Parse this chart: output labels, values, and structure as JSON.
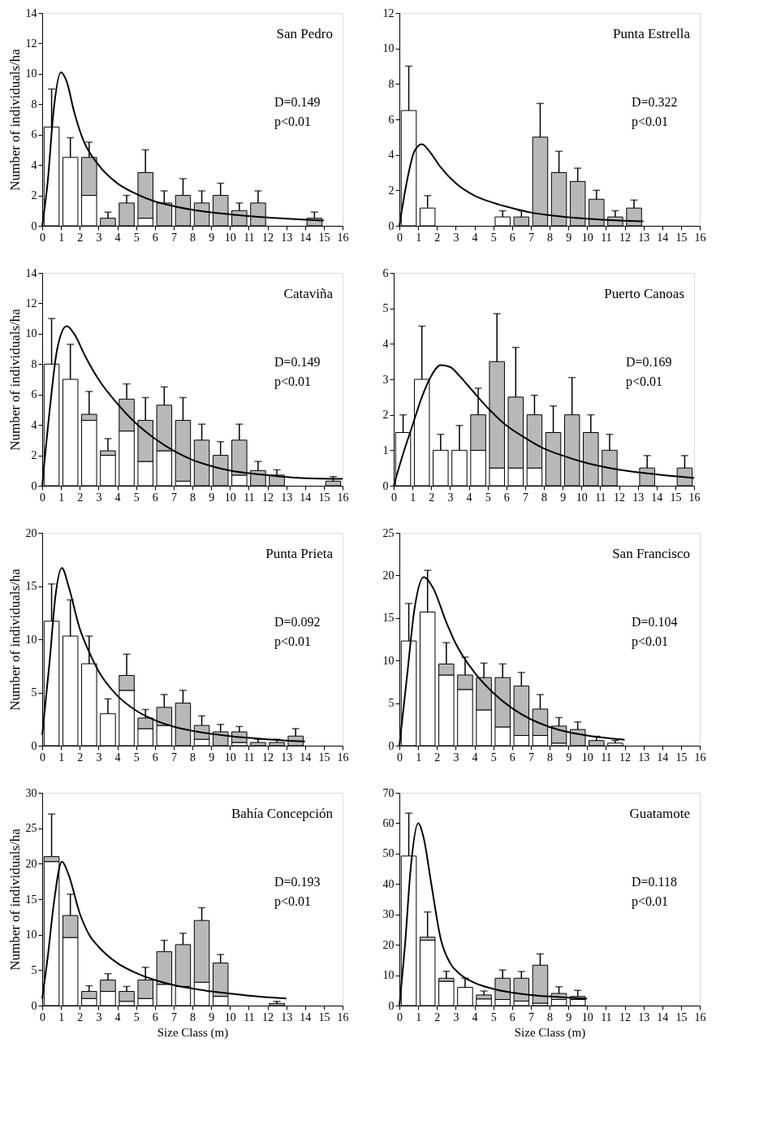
{
  "chart_data": [
    {
      "type": "bar",
      "stacked": true,
      "title": "San Pedro",
      "ylabel": "Number of individuals/ha",
      "annotations": [
        "D=0.149",
        "p<0.01"
      ],
      "x": [
        0.5,
        1.5,
        2.5,
        3.5,
        4.5,
        5.5,
        6.5,
        7.5,
        8.5,
        9.5,
        10.5,
        11.5,
        14.5
      ],
      "series": [
        {
          "color": "#ffffff",
          "values": [
            6.5,
            4.5,
            2,
            0,
            0,
            0.5,
            0,
            0,
            0,
            0,
            0,
            0,
            0
          ]
        },
        {
          "color": "#b8b8b8",
          "values": [
            0,
            0,
            2.5,
            0.5,
            1.5,
            3.0,
            1.5,
            2,
            1.5,
            2,
            1,
            1.5,
            0.5
          ],
          "errors": [
            [
              6.5,
              9
            ],
            [
              4.5,
              5.8
            ],
            [
              4.5,
              5.5
            ],
            [
              0.5,
              0.9
            ],
            [
              1.5,
              2.0
            ],
            [
              3.5,
              5.0
            ],
            [
              1.5,
              2.3
            ],
            [
              2,
              3.1
            ],
            [
              1.5,
              2.3
            ],
            [
              2,
              2.8
            ],
            [
              1,
              1.5
            ],
            [
              1.5,
              2.3
            ],
            [
              0.5,
              0.9
            ]
          ]
        },
        {
          "type": "line",
          "color": "#000000",
          "x": [
            0,
            0.3,
            0.6,
            1,
            1.3,
            1.7,
            2.2,
            3,
            4,
            5,
            6,
            7,
            8,
            10,
            12,
            15
          ],
          "values": [
            0,
            3,
            7.5,
            10.1,
            9.5,
            7.5,
            5.6,
            4,
            2.8,
            2.1,
            1.6,
            1.3,
            1.05,
            0.75,
            0.55,
            0.35
          ]
        }
      ],
      "xlim": [
        0,
        16
      ],
      "xticks": [
        0,
        1,
        2,
        3,
        4,
        5,
        6,
        7,
        8,
        9,
        10,
        11,
        12,
        13,
        14,
        15,
        16
      ],
      "ylim": [
        0,
        14
      ],
      "yticks": [
        0,
        2,
        4,
        6,
        8,
        10,
        12,
        14
      ]
    },
    {
      "type": "bar",
      "stacked": true,
      "title": "Punta Estrella",
      "annotations": [
        "D=0.322",
        "p<0.01"
      ],
      "x": [
        0.5,
        1.5,
        5.5,
        6.5,
        7.5,
        8.5,
        9.5,
        10.5,
        11.5,
        12.5
      ],
      "series": [
        {
          "color": "#ffffff",
          "values": [
            6.5,
            1,
            0.5,
            0,
            0,
            0,
            0,
            0,
            0,
            0
          ]
        },
        {
          "color": "#b8b8b8",
          "values": [
            0,
            0,
            0,
            0.5,
            5,
            3,
            2.5,
            1.5,
            0.5,
            1
          ],
          "errors": [
            [
              6.5,
              9
            ],
            [
              1,
              1.7
            ],
            [
              0.5,
              0.85
            ],
            [
              0.5,
              0.85
            ],
            [
              5,
              6.9
            ],
            [
              3,
              4.2
            ],
            [
              2.5,
              3.25
            ],
            [
              1.5,
              2.0
            ],
            [
              0.5,
              0.85
            ],
            [
              1,
              1.45
            ]
          ]
        },
        {
          "type": "line",
          "color": "#000000",
          "x": [
            0,
            0.4,
            0.8,
            1.2,
            1.6,
            2.2,
            3,
            4,
            5,
            6,
            7,
            8,
            10,
            13
          ],
          "values": [
            0,
            2.5,
            4.2,
            4.6,
            4.2,
            3.3,
            2.4,
            1.7,
            1.3,
            1.0,
            0.75,
            0.6,
            0.4,
            0.25
          ]
        }
      ],
      "xlim": [
        0,
        16
      ],
      "xticks": [
        0,
        1,
        2,
        3,
        4,
        5,
        6,
        7,
        8,
        9,
        10,
        11,
        12,
        13,
        14,
        15,
        16
      ],
      "ylim": [
        0,
        12
      ],
      "yticks": [
        0,
        2,
        4,
        6,
        8,
        10,
        12
      ]
    },
    {
      "type": "bar",
      "stacked": true,
      "title": "Cataviña",
      "ylabel": "Number of individuals/ha",
      "annotations": [
        "D=0.149",
        "p<0.01"
      ],
      "x": [
        0.5,
        1.5,
        2.5,
        3.5,
        4.5,
        5.5,
        6.5,
        7.5,
        8.5,
        9.5,
        10.5,
        11.5,
        12.5,
        15.5
      ],
      "series": [
        {
          "color": "#ffffff",
          "values": [
            8,
            7,
            4.3,
            2.0,
            3.6,
            1.6,
            2.3,
            0.3,
            0,
            0,
            0.7,
            0,
            0,
            0
          ]
        },
        {
          "color": "#b8b8b8",
          "values": [
            0,
            0,
            0.4,
            0.3,
            2.1,
            2.7,
            3.0,
            4.0,
            3,
            2,
            2.3,
            1,
            0.7,
            0.3
          ],
          "errors": [
            [
              8,
              11
            ],
            [
              7,
              9.3
            ],
            [
              4.7,
              6.2
            ],
            [
              2.3,
              3.1
            ],
            [
              5.7,
              6.7
            ],
            [
              4.3,
              5.8
            ],
            [
              5.3,
              6.5
            ],
            [
              4.3,
              5.8
            ],
            [
              3,
              4.05
            ],
            [
              2,
              2.9
            ],
            [
              3,
              4.05
            ],
            [
              1,
              1.6
            ],
            [
              0.7,
              1.05
            ],
            [
              0.3,
              0.6
            ]
          ]
        },
        {
          "type": "line",
          "color": "#000000",
          "x": [
            0,
            0.4,
            0.8,
            1.3,
            1.7,
            2.3,
            3,
            4,
            5,
            6,
            7,
            8,
            9,
            10,
            12,
            14,
            16
          ],
          "values": [
            0,
            5,
            9,
            10.5,
            10,
            8.5,
            7,
            5.4,
            4.1,
            3.1,
            2.3,
            1.7,
            1.3,
            1.0,
            0.7,
            0.5,
            0.45
          ]
        }
      ],
      "xlim": [
        0,
        16
      ],
      "xticks": [
        0,
        1,
        2,
        3,
        4,
        5,
        6,
        7,
        8,
        9,
        10,
        11,
        12,
        13,
        14,
        15,
        16
      ],
      "ylim": [
        0,
        14
      ],
      "yticks": [
        0,
        2,
        4,
        6,
        8,
        10,
        12,
        14
      ]
    },
    {
      "type": "bar",
      "stacked": true,
      "title": "Puerto Canoas",
      "annotations": [
        "D=0.169",
        "p<0.01"
      ],
      "x": [
        0.5,
        1.5,
        2.5,
        3.5,
        4.5,
        5.5,
        6.5,
        7.5,
        8.5,
        9.5,
        10.5,
        11.5,
        13.5,
        15.5
      ],
      "series": [
        {
          "color": "#ffffff",
          "values": [
            1.5,
            3,
            1,
            1,
            1,
            0.5,
            0.5,
            0.5,
            0,
            0,
            0,
            0,
            0,
            0
          ]
        },
        {
          "color": "#b8b8b8",
          "values": [
            0,
            0,
            0,
            0,
            1,
            3,
            2,
            1.5,
            1.5,
            2,
            1.5,
            1,
            0.5,
            0.5
          ],
          "errors": [
            [
              1.5,
              2.0
            ],
            [
              3,
              4.5
            ],
            [
              1,
              1.45
            ],
            [
              1,
              1.7
            ],
            [
              2,
              2.75
            ],
            [
              3.5,
              4.85
            ],
            [
              2.5,
              3.9
            ],
            [
              2,
              2.55
            ],
            [
              1.5,
              2.25
            ],
            [
              2,
              3.05
            ],
            [
              1.5,
              2.0
            ],
            [
              1,
              1.45
            ],
            [
              0.5,
              0.85
            ],
            [
              0.5,
              0.85
            ]
          ]
        },
        {
          "type": "line",
          "color": "#000000",
          "x": [
            0,
            0.5,
            1,
            1.5,
            2,
            2.5,
            3,
            3.5,
            4,
            5,
            6,
            7,
            8,
            9,
            10,
            12,
            14,
            16
          ],
          "values": [
            0,
            0.9,
            1.7,
            2.5,
            3.1,
            3.4,
            3.35,
            3.1,
            2.8,
            2.2,
            1.7,
            1.35,
            1.05,
            0.85,
            0.68,
            0.45,
            0.32,
            0.22
          ]
        }
      ],
      "xlim": [
        0,
        16
      ],
      "xticks": [
        0,
        1,
        2,
        3,
        4,
        5,
        6,
        7,
        8,
        9,
        10,
        11,
        12,
        13,
        14,
        15,
        16
      ],
      "ylim": [
        0,
        6
      ],
      "yticks": [
        0,
        1,
        2,
        3,
        4,
        5,
        6
      ]
    },
    {
      "type": "bar",
      "stacked": true,
      "title": "Punta Prieta",
      "ylabel": "Number of individuals/ha",
      "annotations": [
        "D=0.092",
        "p<0.01"
      ],
      "x": [
        0.5,
        1.5,
        2.5,
        3.5,
        4.5,
        5.5,
        6.5,
        7.5,
        8.5,
        9.5,
        10.5,
        11.5,
        12.5,
        13.5
      ],
      "series": [
        {
          "color": "#ffffff",
          "values": [
            11.7,
            10.3,
            7.7,
            3,
            5.2,
            1.6,
            1.9,
            0,
            0.6,
            0,
            0.3,
            0,
            0,
            0
          ]
        },
        {
          "color": "#b8b8b8",
          "values": [
            0,
            0,
            0,
            0,
            1.4,
            1.0,
            1.7,
            4.0,
            1.3,
            1.3,
            1.0,
            0.3,
            0.3,
            0.9
          ],
          "errors": [
            [
              11.7,
              15.2
            ],
            [
              10.3,
              13.7
            ],
            [
              7.7,
              10.3
            ],
            [
              3,
              4.4
            ],
            [
              6.6,
              8.6
            ],
            [
              2.6,
              3.4
            ],
            [
              3.6,
              4.8
            ],
            [
              4.0,
              5.2
            ],
            [
              1.9,
              2.8
            ],
            [
              1.3,
              2.0
            ],
            [
              1.3,
              1.8
            ],
            [
              0.3,
              0.6
            ],
            [
              0.3,
              0.6
            ],
            [
              0.9,
              1.6
            ]
          ]
        },
        {
          "type": "line",
          "color": "#000000",
          "x": [
            0,
            0.4,
            0.7,
            1.05,
            1.4,
            2,
            2.5,
            3,
            4,
            5,
            6,
            7,
            8,
            10,
            12,
            14
          ],
          "values": [
            1,
            8,
            14,
            16.7,
            15,
            11,
            8.8,
            7,
            4.7,
            3.3,
            2.4,
            1.8,
            1.4,
            0.9,
            0.6,
            0.4
          ]
        }
      ],
      "xlim": [
        0,
        16
      ],
      "xticks": [
        0,
        1,
        2,
        3,
        4,
        5,
        6,
        7,
        8,
        9,
        10,
        11,
        12,
        13,
        14,
        15,
        16
      ],
      "ylim": [
        0,
        20
      ],
      "yticks": [
        0,
        5,
        10,
        15,
        20
      ]
    },
    {
      "type": "bar",
      "stacked": true,
      "title": "San Francisco",
      "annotations": [
        "D=0.104",
        "p<0.01"
      ],
      "x": [
        0.5,
        1.5,
        2.5,
        3.5,
        4.5,
        5.5,
        6.5,
        7.5,
        8.5,
        9.5,
        10.5,
        11.5
      ],
      "series": [
        {
          "color": "#ffffff",
          "values": [
            12.3,
            15.7,
            8.3,
            6.6,
            4.2,
            2.2,
            1.2,
            1.2,
            0.3,
            0,
            0,
            0.3
          ]
        },
        {
          "color": "#b8b8b8",
          "values": [
            0,
            0,
            1.3,
            1.7,
            3.8,
            5.8,
            5.8,
            3.1,
            2.0,
            1.9,
            0.6,
            0
          ],
          "errors": [
            [
              12.3,
              16.7
            ],
            [
              15.7,
              20.6
            ],
            [
              9.6,
              12.1
            ],
            [
              8.3,
              10.4
            ],
            [
              8,
              9.7
            ],
            [
              8,
              9.6
            ],
            [
              7,
              8.6
            ],
            [
              4.3,
              6.0
            ],
            [
              2.3,
              3.3
            ],
            [
              1.9,
              2.8
            ],
            [
              0.6,
              1.1
            ],
            [
              0.3,
              0.6
            ]
          ]
        },
        {
          "type": "line",
          "color": "#000000",
          "x": [
            0,
            0.4,
            0.8,
            1.3,
            1.8,
            2.5,
            3,
            4,
            5,
            6,
            7,
            8,
            9,
            10,
            12
          ],
          "values": [
            0,
            8,
            16,
            19.8,
            18.5,
            14.5,
            12,
            8.6,
            6.2,
            4.4,
            3.1,
            2.2,
            1.6,
            1.2,
            0.7
          ]
        }
      ],
      "xlim": [
        0,
        16
      ],
      "xticks": [
        0,
        1,
        2,
        3,
        4,
        5,
        6,
        7,
        8,
        9,
        10,
        11,
        12,
        13,
        14,
        15,
        16
      ],
      "ylim": [
        0,
        25
      ],
      "yticks": [
        0,
        5,
        10,
        15,
        20,
        25
      ]
    },
    {
      "type": "bar",
      "stacked": true,
      "title": "Bahía Concepción",
      "xlabel": "Size Class (m)",
      "ylabel": "Number of individuals/ha",
      "annotations": [
        "D=0.193",
        "p<0.01"
      ],
      "x": [
        0.5,
        1.5,
        2.5,
        3.5,
        4.5,
        5.5,
        6.5,
        7.5,
        8.5,
        9.5,
        12.5
      ],
      "series": [
        {
          "color": "#ffffff",
          "values": [
            20.3,
            9.6,
            1,
            2,
            0.6,
            1,
            3,
            2.7,
            3.3,
            1.3,
            0
          ]
        },
        {
          "color": "#b8b8b8",
          "values": [
            0.7,
            3.1,
            1,
            1.6,
            1.4,
            2.6,
            4.6,
            5.9,
            8.7,
            4.7,
            0.3
          ],
          "errors": [
            [
              21,
              27
            ],
            [
              12.7,
              15.7
            ],
            [
              2,
              2.8
            ],
            [
              3.6,
              4.5
            ],
            [
              2,
              2.7
            ],
            [
              3.6,
              5.4
            ],
            [
              7.6,
              9.2
            ],
            [
              8.6,
              10.2
            ],
            [
              12,
              13.8
            ],
            [
              6,
              7.2
            ],
            [
              0.3,
              0.6
            ]
          ]
        },
        {
          "type": "line",
          "color": "#000000",
          "x": [
            0,
            0.3,
            0.6,
            1.05,
            1.4,
            2,
            2.5,
            3,
            4,
            5,
            6,
            7,
            8,
            9,
            10,
            11,
            13
          ],
          "values": [
            1,
            7,
            14,
            20.3,
            18.5,
            13,
            10,
            8.3,
            6,
            4.6,
            3.6,
            2.9,
            2.4,
            2.0,
            1.7,
            1.4,
            1.0
          ]
        }
      ],
      "xlim": [
        0,
        16
      ],
      "xticks": [
        0,
        1,
        2,
        3,
        4,
        5,
        6,
        7,
        8,
        9,
        10,
        11,
        12,
        13,
        14,
        15,
        16
      ],
      "ylim": [
        0,
        30
      ],
      "yticks": [
        0,
        5,
        10,
        15,
        20,
        25,
        30
      ]
    },
    {
      "type": "bar",
      "stacked": true,
      "title": "Guatamote",
      "xlabel": "Size Class (m)",
      "annotations": [
        "D=0.118",
        "p<0.01"
      ],
      "x": [
        0.5,
        1.5,
        2.5,
        3.5,
        4.5,
        5.5,
        6.5,
        7.5,
        8.5,
        9.5
      ],
      "series": [
        {
          "color": "#ffffff",
          "values": [
            49.2,
            21.5,
            8,
            6,
            2.2,
            2,
            1.5,
            0.8,
            2,
            2
          ]
        },
        {
          "color": "#b8b8b8",
          "values": [
            0,
            1,
            1,
            0,
            1.3,
            7,
            7.5,
            12.5,
            2,
            1
          ],
          "errors": [
            [
              49.2,
              63.3
            ],
            [
              22.5,
              30.8
            ],
            [
              9,
              11.3
            ],
            [
              6,
              9
            ],
            [
              3.5,
              4.8
            ],
            [
              9,
              11.7
            ],
            [
              9,
              11.2
            ],
            [
              13.3,
              17
            ],
            [
              4,
              6.2
            ],
            [
              3,
              5
            ]
          ]
        },
        {
          "type": "line",
          "color": "#000000",
          "x": [
            0,
            0.3,
            0.6,
            1,
            1.3,
            1.7,
            2.2,
            2.7,
            3.2,
            4,
            5,
            6,
            7,
            8,
            10
          ],
          "values": [
            0,
            20,
            45,
            60,
            55,
            40,
            22,
            14,
            10.5,
            7.5,
            5.5,
            4.3,
            3.5,
            3,
            2.3
          ]
        }
      ],
      "xlim": [
        0,
        16
      ],
      "xticks": [
        0,
        1,
        2,
        3,
        4,
        5,
        6,
        7,
        8,
        9,
        10,
        11,
        12,
        13,
        14,
        15,
        16
      ],
      "ylim": [
        0,
        70
      ],
      "yticks": [
        0,
        10,
        20,
        30,
        40,
        50,
        60,
        70
      ]
    }
  ]
}
